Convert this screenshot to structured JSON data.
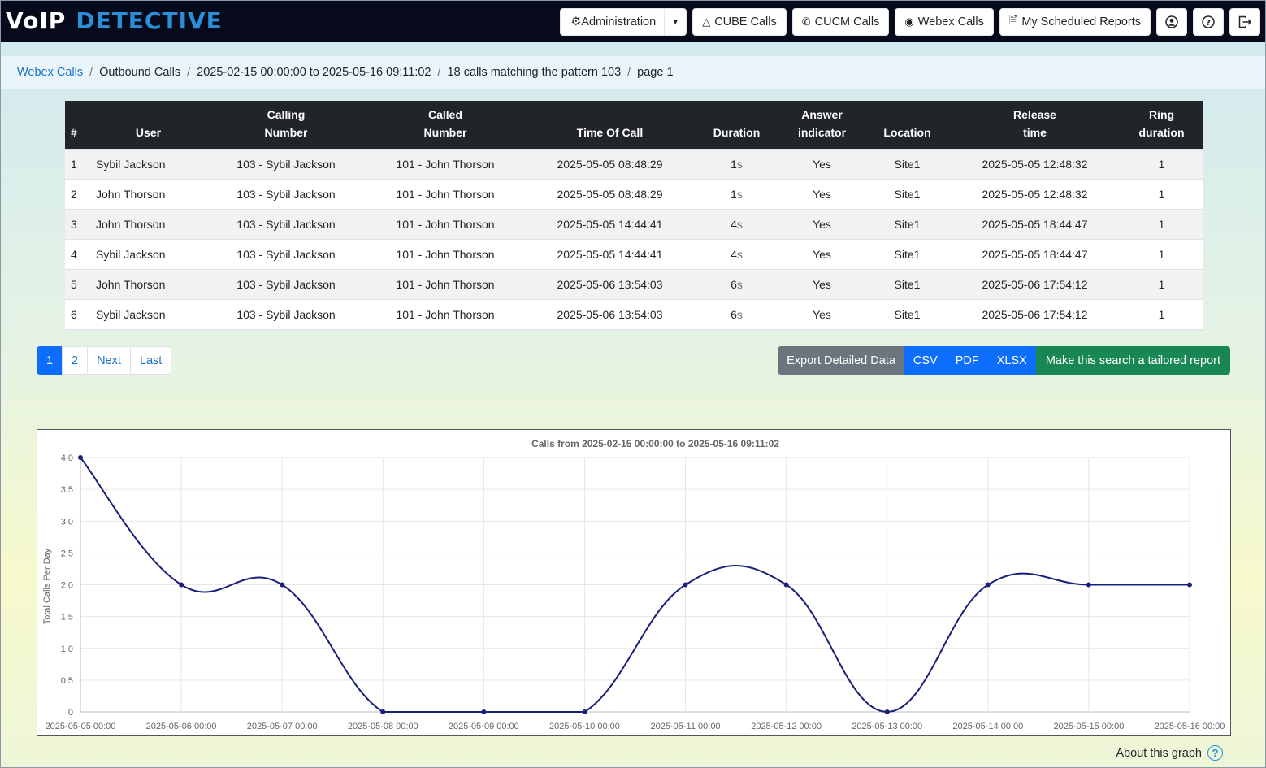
{
  "brand": {
    "voip": "VoIP",
    "detective": "DETECTIVE"
  },
  "nav": {
    "administration": "Administration",
    "cube": "CUBE Calls",
    "cucm": "CUCM Calls",
    "webex": "Webex Calls",
    "reports": "My Scheduled Reports",
    "icons": [
      "user-icon",
      "help-icon",
      "logout-icon"
    ]
  },
  "breadcrumb": {
    "items": [
      "Webex Calls",
      "Outbound Calls",
      "2025-02-15 00:00:00 to 2025-05-16 09:11:02",
      "18 calls matching the pattern 103",
      "page 1"
    ]
  },
  "table": {
    "headers": [
      "#",
      "User",
      "Calling Number",
      "Called Number",
      "Time Of Call",
      "Duration",
      "Answer indicator",
      "Location",
      "Release time",
      "Ring duration"
    ],
    "rows": [
      [
        "1",
        "Sybil Jackson",
        "103 - Sybil Jackson",
        "101 - John Thorson",
        "2025-05-05 08:48:29",
        "1",
        "Yes",
        "Site1",
        "2025-05-05 12:48:32",
        "1"
      ],
      [
        "2",
        "John Thorson",
        "103 - Sybil Jackson",
        "101 - John Thorson",
        "2025-05-05 08:48:29",
        "1",
        "Yes",
        "Site1",
        "2025-05-05 12:48:32",
        "1"
      ],
      [
        "3",
        "John Thorson",
        "103 - Sybil Jackson",
        "101 - John Thorson",
        "2025-05-05 14:44:41",
        "4",
        "Yes",
        "Site1",
        "2025-05-05 18:44:47",
        "1"
      ],
      [
        "4",
        "Sybil Jackson",
        "103 - Sybil Jackson",
        "101 - John Thorson",
        "2025-05-05 14:44:41",
        "4",
        "Yes",
        "Site1",
        "2025-05-05 18:44:47",
        "1"
      ],
      [
        "5",
        "John Thorson",
        "103 - Sybil Jackson",
        "101 - John Thorson",
        "2025-05-06 13:54:03",
        "6",
        "Yes",
        "Site1",
        "2025-05-06 17:54:12",
        "1"
      ],
      [
        "6",
        "Sybil Jackson",
        "103 - Sybil Jackson",
        "101 - John Thorson",
        "2025-05-06 13:54:03",
        "6",
        "Yes",
        "Site1",
        "2025-05-06 17:54:12",
        "1"
      ]
    ],
    "duration_unit": "s"
  },
  "pagination": {
    "pages": [
      "1",
      "2"
    ],
    "next": "Next",
    "last": "Last",
    "active": "1"
  },
  "export": {
    "label": "Export Detailed Data",
    "csv": "CSV",
    "pdf": "PDF",
    "xlsx": "XLSX",
    "tailored": "Make this search a tailored report"
  },
  "chart_data": {
    "type": "line",
    "title": "Calls from 2025-02-15 00:00:00 to 2025-05-16 09:11:02",
    "xlabel": "",
    "ylabel": "Total Calls Per Day",
    "categories": [
      "2025-05-05 00:00",
      "2025-05-06 00:00",
      "2025-05-07 00:00",
      "2025-05-08 00:00",
      "2025-05-09 00:00",
      "2025-05-10 00:00",
      "2025-05-11 00:00",
      "2025-05-12 00:00",
      "2025-05-13 00:00",
      "2025-05-14 00:00",
      "2025-05-15 00:00",
      "2025-05-16 00:00"
    ],
    "values": [
      4,
      2,
      2,
      0,
      0,
      0,
      2,
      2,
      0,
      2,
      2,
      2
    ],
    "yticks": [
      "0",
      "0.5",
      "1.0",
      "1.5",
      "2.0",
      "2.5",
      "3.0",
      "3.5",
      "4.0"
    ],
    "ylim": [
      0,
      4
    ],
    "grid": true,
    "legend": "none",
    "line_color": "#1a1f7a"
  },
  "about": {
    "label": "About this graph",
    "icon": "question-circle-icon"
  }
}
